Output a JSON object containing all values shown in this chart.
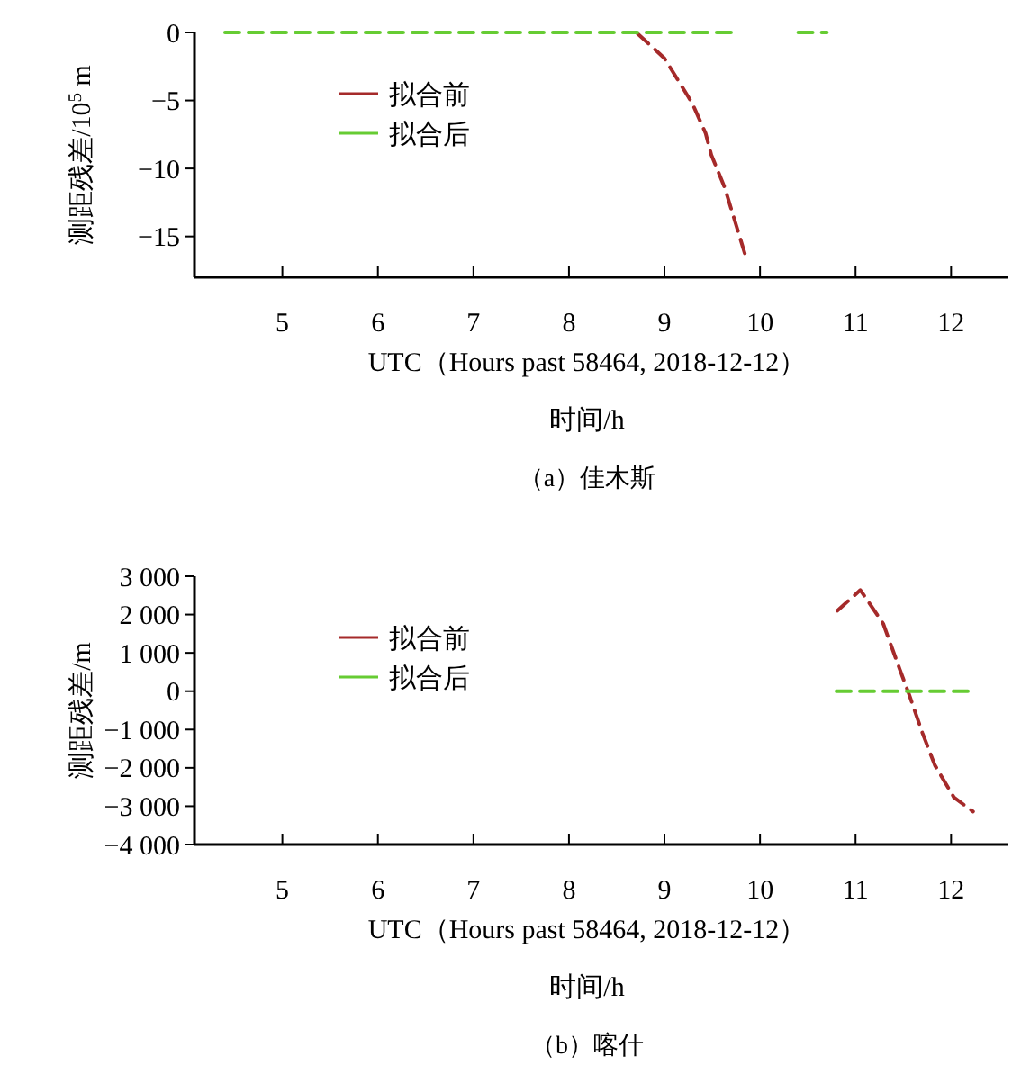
{
  "chart_data": [
    {
      "type": "line",
      "title": "（a）佳木斯",
      "xlabel": "UTC（Hours past 58464, 2018-12-12）",
      "annotations": [
        "时间/h"
      ],
      "ylabel": "测距残差/10$^{5}$ m",
      "xlim": [
        4.08,
        12.6
      ],
      "xticks": [
        5,
        6,
        7,
        8,
        9,
        10,
        11,
        12
      ],
      "ylim": [
        -18,
        0
      ],
      "yticks": [
        0,
        {
          "value": -5,
          "label": "−5"
        },
        {
          "value": -10,
          "label": "−10"
        },
        {
          "value": -15,
          "label": "−15"
        }
      ],
      "legend": "top left",
      "line_style": "dashed",
      "grid": false,
      "series": [
        {
          "name": "拟合前",
          "color": "#a52a2a",
          "x": [
            8.72,
            9.0,
            9.29,
            9.43,
            9.49,
            9.63,
            9.86
          ],
          "values": [
            -0.1,
            -1.9,
            -5.2,
            -7.4,
            -9.0,
            -11.4,
            -16.7
          ]
        },
        {
          "name": "拟合后",
          "color": "#66cc33",
          "x": [
            4.4,
            5.0,
            6.0,
            7.0,
            8.0,
            9.0,
            9.7,
            9.9,
            10.4,
            10.7
          ],
          "values": [
            0,
            0,
            0,
            0,
            0,
            0,
            0,
            null,
            0,
            0
          ]
        }
      ]
    },
    {
      "type": "line",
      "title": "（b）喀什",
      "xlabel": "UTC（Hours past 58464, 2018-12-12）",
      "annotations": [
        "时间/h"
      ],
      "ylabel": "测距残差/m",
      "xlim": [
        4.08,
        12.6
      ],
      "xticks": [
        5,
        6,
        7,
        8,
        9,
        10,
        11,
        12
      ],
      "ylim": [
        -4000,
        3000
      ],
      "yticks": [
        {
          "value": 3000,
          "label": "3 000"
        },
        {
          "value": 2000,
          "label": "2 000"
        },
        {
          "value": 1000,
          "label": "1 000"
        },
        0,
        {
          "value": -1000,
          "label": "−1 000"
        },
        {
          "value": -2000,
          "label": "−2 000"
        },
        {
          "value": -3000,
          "label": "−3 000"
        },
        {
          "value": -4000,
          "label": "−4 000"
        }
      ],
      "legend": "top left",
      "line_style": "dashed",
      "grid": false,
      "series": [
        {
          "name": "拟合前",
          "color": "#a52a2a",
          "x": [
            10.81,
            11.05,
            11.29,
            11.46,
            11.56,
            11.7,
            11.83,
            12.03,
            12.23
          ],
          "values": [
            2100,
            2640,
            1760,
            590,
            -80,
            -1090,
            -1930,
            -2770,
            -3140
          ]
        },
        {
          "name": "拟合后",
          "color": "#66cc33",
          "x": [
            10.8,
            11.2,
            11.6,
            12.0,
            12.25
          ],
          "values": [
            0,
            0,
            0,
            0,
            0
          ]
        }
      ]
    }
  ]
}
